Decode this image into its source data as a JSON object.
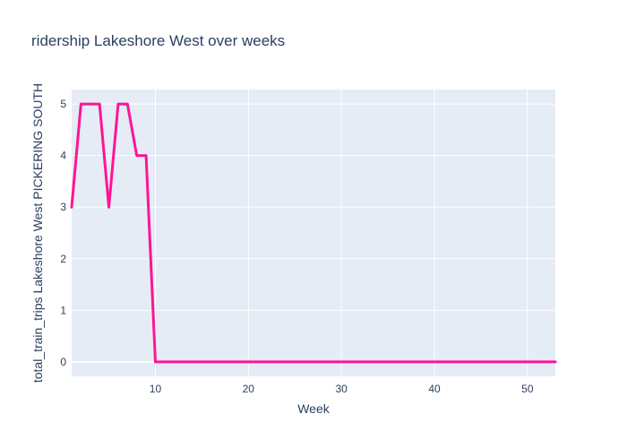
{
  "chart_data": {
    "type": "line",
    "title": "ridership Lakeshore West over weeks",
    "xlabel": "Week",
    "ylabel": "total_train_trips Lakeshore West PICKERING SOUTH",
    "xlim": [
      1,
      53
    ],
    "ylim": [
      -0.28,
      5.28
    ],
    "xticks": [
      10,
      20,
      30,
      40,
      50
    ],
    "yticks": [
      0,
      1,
      2,
      3,
      4,
      5
    ],
    "grid": true,
    "legend": "none",
    "colors": {
      "line": "#ff1493",
      "plot_bg": "#e5ecf6",
      "grid": "#ffffff",
      "text": "#2a3f5f"
    },
    "x": [
      1,
      2,
      3,
      4,
      5,
      6,
      7,
      8,
      9,
      10,
      11,
      12,
      13,
      14,
      15,
      16,
      17,
      18,
      19,
      20,
      21,
      22,
      23,
      24,
      25,
      26,
      27,
      28,
      29,
      30,
      31,
      32,
      33,
      34,
      35,
      36,
      37,
      38,
      39,
      40,
      41,
      42,
      43,
      44,
      45,
      46,
      47,
      48,
      49,
      50,
      51,
      52,
      53
    ],
    "y": [
      3,
      5,
      5,
      5,
      3,
      5,
      5,
      4,
      4,
      0,
      0,
      0,
      0,
      0,
      0,
      0,
      0,
      0,
      0,
      0,
      0,
      0,
      0,
      0,
      0,
      0,
      0,
      0,
      0,
      0,
      0,
      0,
      0,
      0,
      0,
      0,
      0,
      0,
      0,
      0,
      0,
      0,
      0,
      0,
      0,
      0,
      0,
      0,
      0,
      0,
      0,
      0,
      0
    ]
  }
}
